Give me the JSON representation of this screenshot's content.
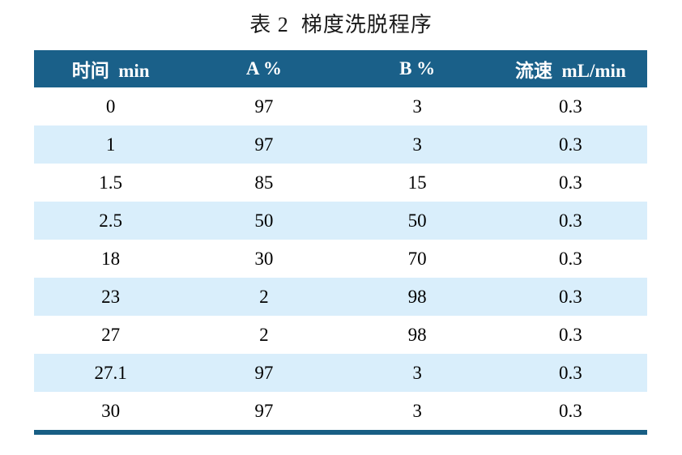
{
  "page": {
    "title": "表 2  梯度洗脱程序"
  },
  "table": {
    "headers": [
      {
        "id": "time",
        "label": "时间  min"
      },
      {
        "id": "a_percent",
        "label": "A %"
      },
      {
        "id": "b_percent",
        "label": "B %"
      },
      {
        "id": "flow_rate",
        "label": "流速  mL/min"
      }
    ],
    "rows": [
      [
        "0",
        "97",
        "3",
        "0.3"
      ],
      [
        "1",
        "97",
        "3",
        "0.3"
      ],
      [
        "1.5",
        "85",
        "15",
        "0.3"
      ],
      [
        "2.5",
        "50",
        "50",
        "0.3"
      ],
      [
        "18",
        "30",
        "70",
        "0.3"
      ],
      [
        "23",
        "2",
        "98",
        "0.3"
      ],
      [
        "27",
        "2",
        "98",
        "0.3"
      ],
      [
        "27.1",
        "97",
        "3",
        "0.3"
      ],
      [
        "30",
        "97",
        "3",
        "0.3"
      ]
    ]
  },
  "colors": {
    "header_bg": "#1a6089",
    "header_text": "#ffffff",
    "zebra_row_bg": "#d9eefb",
    "plain_row_bg": "#ffffff",
    "bottom_rule": "#185e84",
    "body_text": "#000000"
  }
}
